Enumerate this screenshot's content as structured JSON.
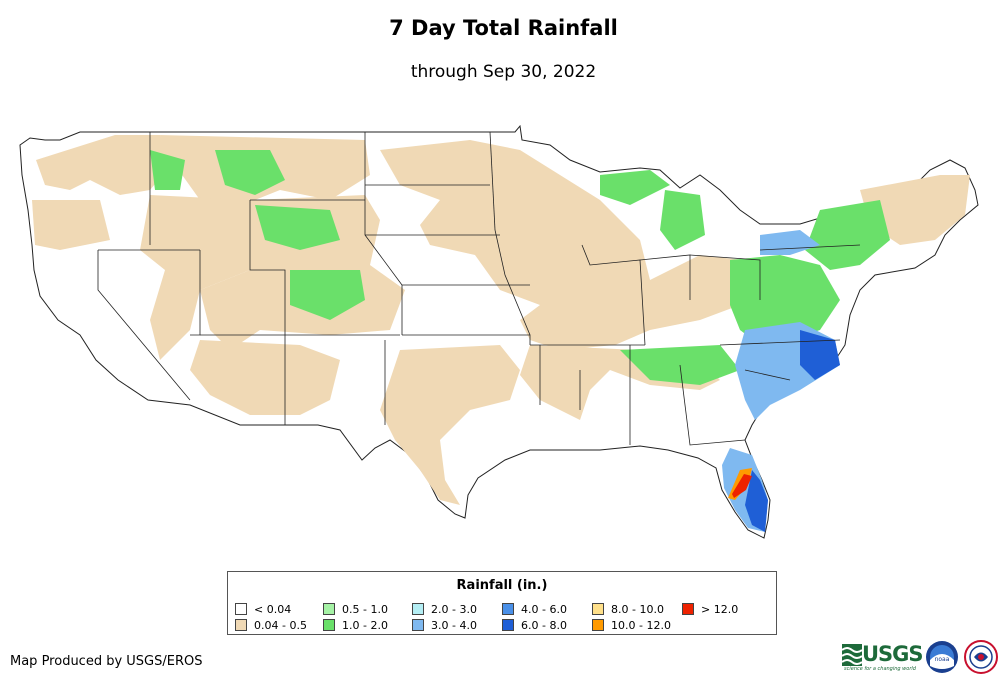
{
  "header": {
    "title": "7 Day Total Rainfall",
    "subtitle": "through Sep 30, 2022"
  },
  "legend": {
    "title": "Rainfall (in.)",
    "items": [
      {
        "label": "< 0.04",
        "color": "#ffffff"
      },
      {
        "label": "0.04 - 0.5",
        "color": "#f0d9b5"
      },
      {
        "label": "0.5 - 1.0",
        "color": "#a5f2a5"
      },
      {
        "label": "1.0 - 2.0",
        "color": "#6ae06a"
      },
      {
        "label": "2.0 - 3.0",
        "color": "#b4eef4"
      },
      {
        "label": "3.0 - 4.0",
        "color": "#7fb9f0"
      },
      {
        "label": "4.0 - 6.0",
        "color": "#4a90e8"
      },
      {
        "label": "6.0 - 8.0",
        "color": "#1f5fd6"
      },
      {
        "label": "8.0 - 10.0",
        "color": "#ffe08a"
      },
      {
        "label": "10.0 - 12.0",
        "color": "#ff9a00"
      },
      {
        "label": "> 12.0",
        "color": "#ee2200"
      }
    ]
  },
  "footer": {
    "credit": "Map Produced by USGS/EROS",
    "usgs_logo_text": "USGS",
    "usgs_tagline": "science for a changing world",
    "noaa_logo_text": "noaa"
  },
  "map": {
    "region": "Contiguous United States",
    "heaviest_rainfall": "Florida peninsula and Carolinas"
  }
}
